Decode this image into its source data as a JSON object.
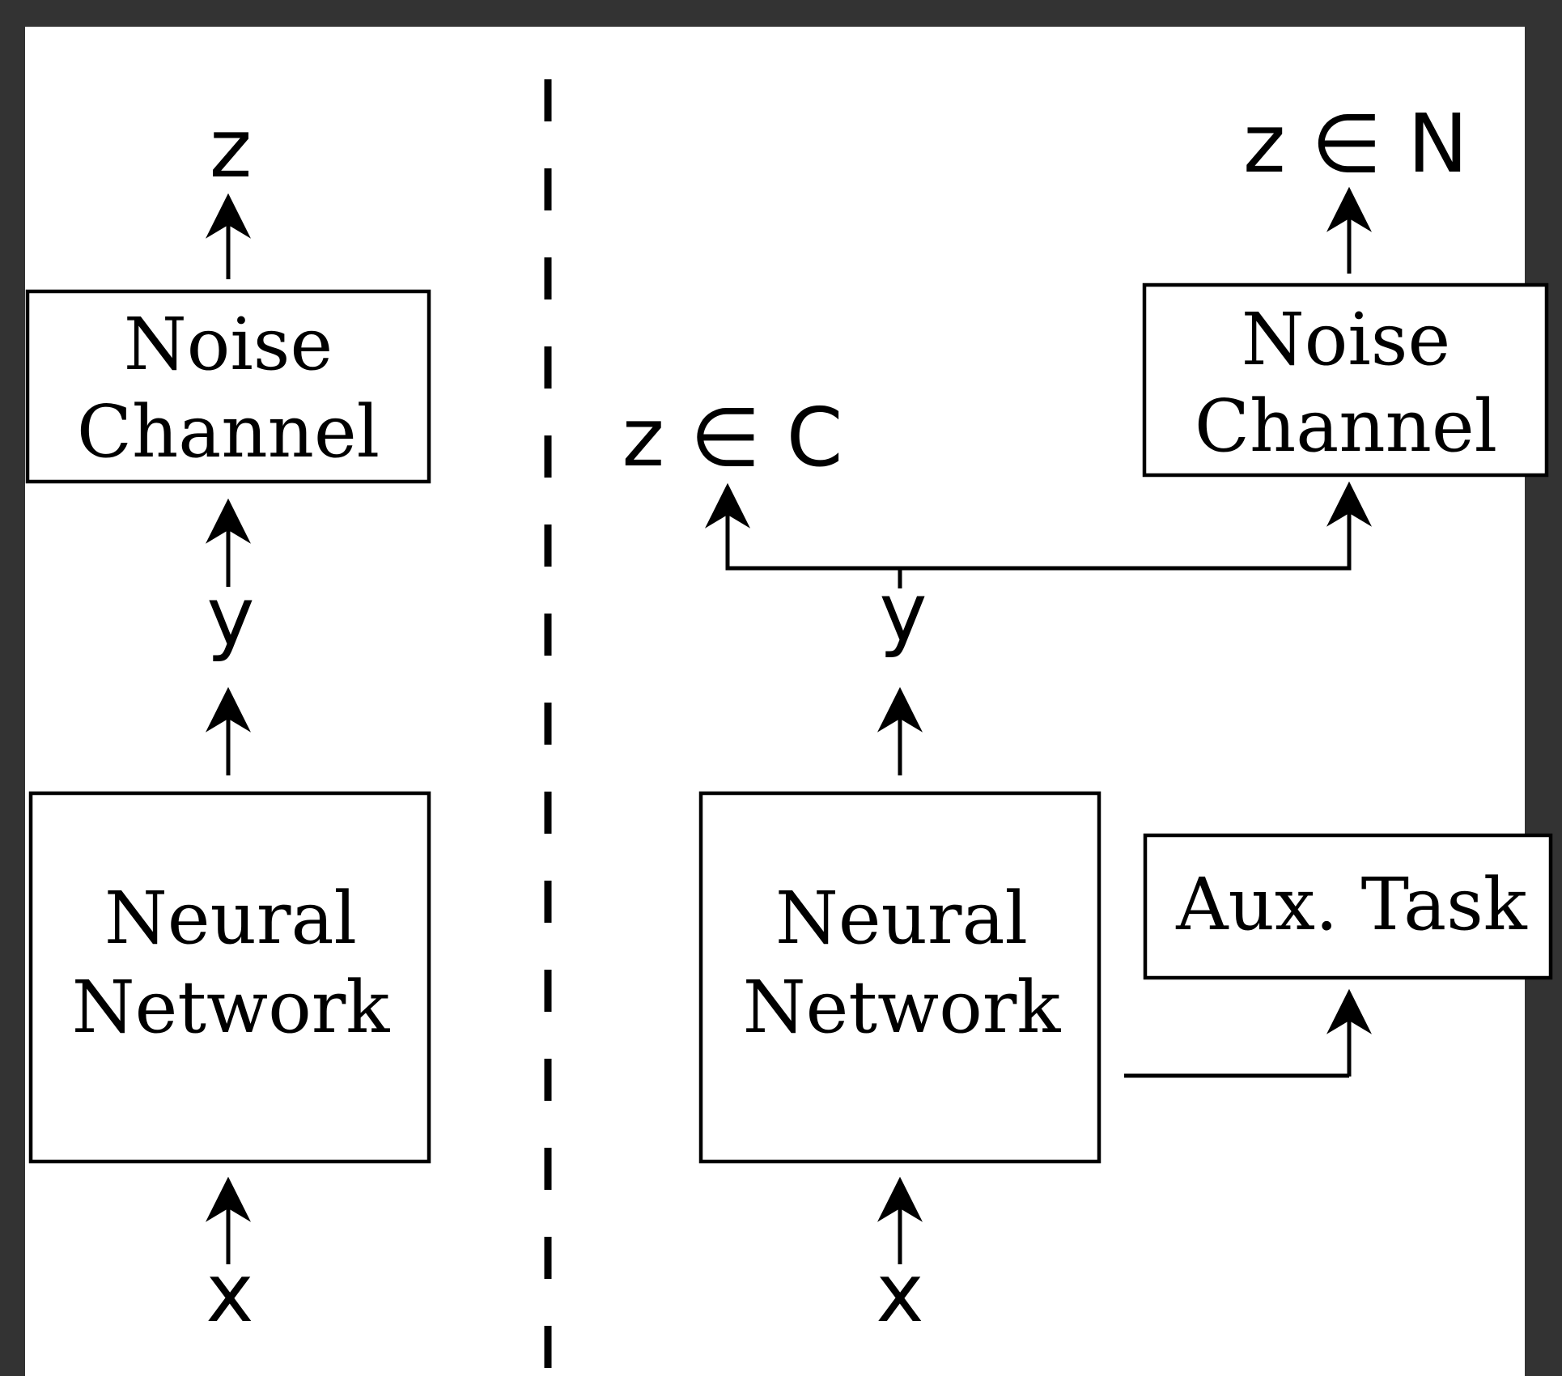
{
  "colors": {
    "frame": "#333333",
    "canvas": "#ffffff",
    "ink": "#000000"
  },
  "left_panel": {
    "output_label": "z",
    "noise_channel": {
      "line1": "Noise",
      "line2": "Channel"
    },
    "intermediate_label": "y",
    "neural_network": {
      "line1": "Neural",
      "line2": "Network"
    },
    "input_label": "x"
  },
  "right_panel": {
    "clean_output_label": "z ∈ C",
    "noisy_output_label": "z ∈ N",
    "noise_channel": {
      "line1": "Noise",
      "line2": "Channel"
    },
    "intermediate_label": "y",
    "neural_network": {
      "line1": "Neural",
      "line2": "Network"
    },
    "aux_task": "Aux. Task",
    "input_label": "x"
  }
}
